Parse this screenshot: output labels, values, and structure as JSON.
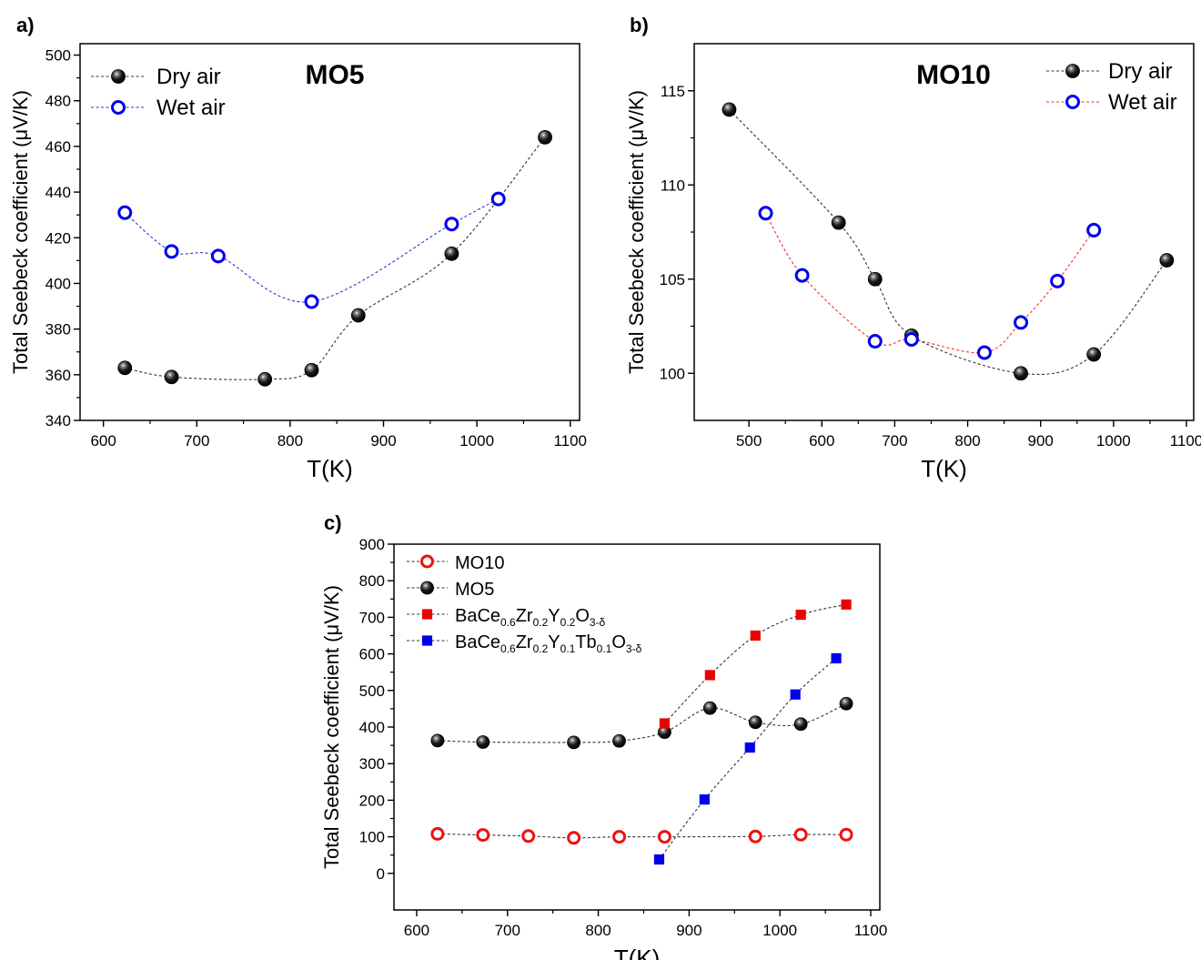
{
  "chart_data": [
    {
      "type": "scatter",
      "panel_label": "a)",
      "title": "MO5",
      "xlabel": "T(K)",
      "ylabel": "Total Seebeck coefficient  (μV/K)",
      "xlim": [
        575,
        1110
      ],
      "ylim": [
        340,
        505
      ],
      "xticks": [
        600,
        700,
        800,
        900,
        1000,
        1100
      ],
      "yticks": [
        340,
        360,
        380,
        400,
        420,
        440,
        460,
        480,
        500
      ],
      "legend_position": "top-left",
      "series": [
        {
          "name": "Dry air",
          "marker": "filled-sphere",
          "color": "#000000",
          "line_color": "#333333",
          "x": [
            623,
            673,
            773,
            823,
            873,
            973,
            1073
          ],
          "y": [
            363,
            359,
            358,
            362,
            386,
            413,
            464
          ]
        },
        {
          "name": "Wet air",
          "marker": "open-circle",
          "color": "#0000ee",
          "line_color": "#3333cc",
          "x": [
            623,
            673,
            723,
            823,
            973,
            1023
          ],
          "y": [
            431,
            414,
            412,
            392,
            426,
            437
          ]
        }
      ]
    },
    {
      "type": "scatter",
      "panel_label": "b)",
      "title": "MO10",
      "xlabel": "T(K)",
      "ylabel": "Total Seebeck coefficient  (μV/K)",
      "xlim": [
        425,
        1110
      ],
      "ylim": [
        97.5,
        117.5
      ],
      "xticks": [
        500,
        600,
        700,
        800,
        900,
        1000,
        1100
      ],
      "yticks": [
        100,
        105,
        110,
        115
      ],
      "legend_position": "top-right",
      "series": [
        {
          "name": "Dry air",
          "marker": "filled-sphere",
          "color": "#000000",
          "line_color": "#333333",
          "x": [
            473,
            623,
            673,
            723,
            873,
            973,
            1073
          ],
          "y": [
            114,
            108,
            105,
            102,
            100,
            101,
            106
          ]
        },
        {
          "name": "Wet air",
          "marker": "open-circle",
          "color": "#0000ee",
          "line_color": "#ee3333",
          "x": [
            523,
            573,
            673,
            723,
            823,
            873,
            923,
            973
          ],
          "y": [
            108.5,
            105.2,
            101.7,
            101.8,
            101.1,
            102.7,
            104.9,
            107.6
          ]
        }
      ]
    },
    {
      "type": "scatter",
      "panel_label": "c)",
      "title": "",
      "xlabel": "T(K)",
      "ylabel": "Total Seebeck coefficient  (μV/K)",
      "xlim": [
        575,
        1110
      ],
      "ylim": [
        -100,
        900
      ],
      "xticks": [
        600,
        700,
        800,
        900,
        1000,
        1100
      ],
      "yticks": [
        0,
        100,
        200,
        300,
        400,
        500,
        600,
        700,
        800,
        900
      ],
      "legend_position": "top-left",
      "series": [
        {
          "name": "MO10",
          "marker": "open-circle",
          "color": "#ee1111",
          "line_color": "#333333",
          "x": [
            623,
            673,
            723,
            773,
            823,
            873,
            973,
            1023,
            1073
          ],
          "y": [
            108,
            105,
            102,
            97,
            100,
            100,
            101,
            106,
            106
          ]
        },
        {
          "name": "MO5",
          "marker": "filled-sphere",
          "color": "#000000",
          "line_color": "#333333",
          "x": [
            623,
            673,
            773,
            823,
            873,
            923,
            973,
            1023,
            1073
          ],
          "y": [
            363,
            359,
            358,
            362,
            386,
            452,
            413,
            408,
            464
          ]
        },
        {
          "name": "BaCe0.6Zr0.2Y0.2O3-δ",
          "name_parts": [
            [
              "BaCe",
              ""
            ],
            [
              "0.6",
              "sub"
            ],
            [
              "Zr",
              ""
            ],
            [
              "0.2",
              "sub"
            ],
            [
              "Y",
              ""
            ],
            [
              "0.2",
              "sub"
            ],
            [
              "O",
              ""
            ],
            [
              "3-δ",
              "sub"
            ]
          ],
          "marker": "square",
          "color": "#ee0000",
          "line_color": "#333333",
          "x": [
            873,
            923,
            973,
            1023,
            1073
          ],
          "y": [
            410,
            542,
            650,
            707,
            735
          ]
        },
        {
          "name": "BaCe0.6Zr0.2Y0.1Tb0.1O3-δ",
          "name_parts": [
            [
              "BaCe",
              ""
            ],
            [
              "0.6",
              "sub"
            ],
            [
              "Zr",
              ""
            ],
            [
              "0.2",
              "sub"
            ],
            [
              "Y",
              ""
            ],
            [
              "0.1",
              "sub"
            ],
            [
              "Tb",
              ""
            ],
            [
              "0.1",
              "sub"
            ],
            [
              "O",
              ""
            ],
            [
              "3-δ",
              "sub"
            ]
          ],
          "marker": "square",
          "color": "#0000ee",
          "line_color": "#333333",
          "x": [
            867,
            917,
            967,
            1017,
            1062
          ],
          "y": [
            38,
            202,
            344,
            489,
            588
          ]
        }
      ]
    }
  ]
}
